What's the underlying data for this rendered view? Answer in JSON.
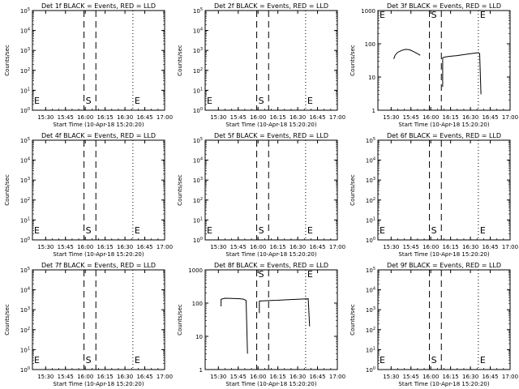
{
  "chart_data": [
    {
      "type": "line",
      "title": "Det 1f BLACK = Events, RED = LLD",
      "xlabel": "Start Time (10-Apr-18 15:20:20)",
      "ylabel": "Counts/sec",
      "x_ticks": [
        "15:30",
        "15:45",
        "16:00",
        "16:15",
        "16:30",
        "16:45",
        "17:00"
      ],
      "y_ticks": [
        "10^0",
        "10^1",
        "10^2",
        "10^3",
        "10^4",
        "10^5"
      ],
      "ylim": [
        1,
        100000
      ],
      "log_y": true,
      "markers": [
        {
          "label": "E",
          "x": "15:20",
          "style": "dotted"
        },
        {
          "label": "S",
          "x": "15:59",
          "style": "dashed"
        },
        {
          "label": "",
          "x": "16:08",
          "style": "dashed"
        },
        {
          "label": "E",
          "x": "16:36",
          "style": "dotted"
        }
      ],
      "series": []
    },
    {
      "type": "line",
      "title": "Det 2f BLACK = Events, RED = LLD",
      "xlabel": "Start Time (10-Apr-18 15:20:20)",
      "ylabel": "Counts/sec",
      "x_ticks": [
        "15:30",
        "15:45",
        "16:00",
        "16:15",
        "16:30",
        "16:45",
        "17:00"
      ],
      "y_ticks": [
        "10^0",
        "10^1",
        "10^2",
        "10^3",
        "10^4",
        "10^5"
      ],
      "ylim": [
        1,
        100000
      ],
      "log_y": true,
      "markers": [
        {
          "label": "E",
          "x": "15:20",
          "style": "dotted"
        },
        {
          "label": "S",
          "x": "15:59",
          "style": "dashed"
        },
        {
          "label": "",
          "x": "16:08",
          "style": "dashed"
        },
        {
          "label": "E",
          "x": "16:36",
          "style": "dotted"
        }
      ],
      "series": []
    },
    {
      "type": "line",
      "title": "Det 3f BLACK = Events, RED = LLD",
      "xlabel": "Start Time (10-Apr-18 15:20:20)",
      "ylabel": "Counts/sec",
      "x_ticks": [
        "15:30",
        "15:45",
        "16:00",
        "16:15",
        "16:30",
        "16:45",
        "17:00"
      ],
      "y_ticks": [
        "1",
        "10",
        "100",
        "1000"
      ],
      "ylim": [
        1,
        1000
      ],
      "log_y": true,
      "markers": [
        {
          "label": "E",
          "x": "15:20",
          "style": "dotted"
        },
        {
          "label": "S",
          "x": "15:59",
          "style": "dashed"
        },
        {
          "label": "",
          "x": "16:08",
          "style": "dashed"
        },
        {
          "label": "E",
          "x": "16:36",
          "style": "dotted"
        }
      ],
      "series": [
        {
          "color": "#000000",
          "segments": [
            [
              [
                "15:32",
                35
              ],
              [
                "15:33",
                45
              ],
              [
                "15:35",
                55
              ],
              [
                "15:38",
                63
              ],
              [
                "15:41",
                68
              ],
              [
                "15:44",
                66
              ],
              [
                "15:47",
                58
              ],
              [
                "15:50",
                50
              ],
              [
                "15:52",
                45
              ]
            ],
            [
              [
                "16:09",
                5
              ],
              [
                "16:09",
                38
              ],
              [
                "16:11",
                40
              ],
              [
                "16:15",
                42
              ],
              [
                "16:20",
                44
              ],
              [
                "16:25",
                47
              ],
              [
                "16:30",
                50
              ],
              [
                "16:33",
                52
              ],
              [
                "16:36",
                54
              ],
              [
                "16:37",
                50
              ],
              [
                "16:38",
                3
              ]
            ]
          ]
        }
      ]
    },
    {
      "type": "line",
      "title": "Det 4f BLACK = Events, RED = LLD",
      "xlabel": "Start Time (10-Apr-18 15:20:20)",
      "ylabel": "Counts/sec",
      "x_ticks": [
        "15:30",
        "15:45",
        "16:00",
        "16:15",
        "16:30",
        "16:45",
        "17:00"
      ],
      "y_ticks": [
        "10^0",
        "10^1",
        "10^2",
        "10^3",
        "10^4",
        "10^5"
      ],
      "ylim": [
        1,
        100000
      ],
      "log_y": true,
      "markers": [
        {
          "label": "E",
          "x": "15:20",
          "style": "dotted"
        },
        {
          "label": "S",
          "x": "15:59",
          "style": "dashed"
        },
        {
          "label": "",
          "x": "16:08",
          "style": "dashed"
        },
        {
          "label": "E",
          "x": "16:36",
          "style": "dotted"
        }
      ],
      "series": []
    },
    {
      "type": "line",
      "title": "Det 5f BLACK = Events, RED = LLD",
      "xlabel": "Start Time (10-Apr-18 15:20:20)",
      "ylabel": "Counts/sec",
      "x_ticks": [
        "15:30",
        "15:45",
        "16:00",
        "16:15",
        "16:30",
        "16:45",
        "17:00"
      ],
      "y_ticks": [
        "10^0",
        "10^1",
        "10^2",
        "10^3",
        "10^4",
        "10^5"
      ],
      "ylim": [
        1,
        100000
      ],
      "log_y": true,
      "markers": [
        {
          "label": "E",
          "x": "15:20",
          "style": "dotted"
        },
        {
          "label": "S",
          "x": "15:59",
          "style": "dashed"
        },
        {
          "label": "",
          "x": "16:08",
          "style": "dashed"
        },
        {
          "label": "E",
          "x": "16:36",
          "style": "dotted"
        }
      ],
      "series": []
    },
    {
      "type": "line",
      "title": "Det 6f BLACK = Events, RED = LLD",
      "xlabel": "Start Time (10-Apr-18 15:20:20)",
      "ylabel": "Counts/sec",
      "x_ticks": [
        "15:30",
        "15:45",
        "16:00",
        "16:15",
        "16:30",
        "16:45",
        "17:00"
      ],
      "y_ticks": [
        "10^0",
        "10^1",
        "10^2",
        "10^3",
        "10^4",
        "10^5"
      ],
      "ylim": [
        1,
        100000
      ],
      "log_y": true,
      "markers": [
        {
          "label": "E",
          "x": "15:20",
          "style": "dotted"
        },
        {
          "label": "S",
          "x": "15:59",
          "style": "dashed"
        },
        {
          "label": "",
          "x": "16:08",
          "style": "dashed"
        },
        {
          "label": "E",
          "x": "16:36",
          "style": "dotted"
        }
      ],
      "series": []
    },
    {
      "type": "line",
      "title": "Det 7f BLACK = Events, RED = LLD",
      "xlabel": "Start Time (10-Apr-18 15:20:20)",
      "ylabel": "Counts/sec",
      "x_ticks": [
        "15:30",
        "15:45",
        "16:00",
        "16:15",
        "16:30",
        "16:45",
        "17:00"
      ],
      "y_ticks": [
        "10^0",
        "10^1",
        "10^2",
        "10^3",
        "10^4",
        "10^5"
      ],
      "ylim": [
        1,
        100000
      ],
      "log_y": true,
      "markers": [
        {
          "label": "E",
          "x": "15:20",
          "style": "dotted"
        },
        {
          "label": "S",
          "x": "15:59",
          "style": "dashed"
        },
        {
          "label": "",
          "x": "16:08",
          "style": "dashed"
        },
        {
          "label": "E",
          "x": "16:36",
          "style": "dotted"
        }
      ],
      "series": []
    },
    {
      "type": "line",
      "title": "Det 8f BLACK = Events, RED = LLD",
      "xlabel": "Start Time (10-Apr-18 15:20:20)",
      "ylabel": "Counts/sec",
      "x_ticks": [
        "15:30",
        "15:45",
        "16:00",
        "16:15",
        "16:30",
        "16:45",
        "17:00"
      ],
      "y_ticks": [
        "1",
        "10",
        "100",
        "1000"
      ],
      "ylim": [
        1,
        1000
      ],
      "log_y": true,
      "markers": [
        {
          "label": "",
          "x": "15:20",
          "style": "dotted"
        },
        {
          "label": "S",
          "x": "15:59",
          "style": "dashed"
        },
        {
          "label": "",
          "x": "16:08",
          "style": "dashed"
        },
        {
          "label": "E",
          "x": "16:36",
          "style": "dotted"
        }
      ],
      "series": [
        {
          "color": "#000000",
          "segments": [
            [
              [
                "15:32",
                80
              ],
              [
                "15:32",
                130
              ],
              [
                "15:35",
                140
              ],
              [
                "15:40",
                138
              ],
              [
                "15:45",
                136
              ],
              [
                "15:49",
                132
              ],
              [
                "15:51",
                120
              ],
              [
                "15:52",
                3
              ]
            ],
            [
              [
                "16:01",
                50
              ],
              [
                "16:01",
                115
              ],
              [
                "16:05",
                118
              ],
              [
                "16:10",
                120
              ],
              [
                "16:15",
                122
              ],
              [
                "16:20",
                125
              ],
              [
                "16:25",
                128
              ],
              [
                "16:30",
                130
              ],
              [
                "16:35",
                133
              ],
              [
                "16:38",
                135
              ],
              [
                "16:39",
                20
              ]
            ]
          ]
        }
      ]
    },
    {
      "type": "line",
      "title": "Det 9f BLACK = Events, RED = LLD",
      "xlabel": "Start Time (10-Apr-18 15:20:20)",
      "ylabel": "Counts/sec",
      "x_ticks": [
        "15:30",
        "15:45",
        "16:00",
        "16:15",
        "16:30",
        "16:45",
        "17:00"
      ],
      "y_ticks": [
        "10^0",
        "10^1",
        "10^2",
        "10^3",
        "10^4",
        "10^5"
      ],
      "ylim": [
        1,
        100000
      ],
      "log_y": true,
      "markers": [
        {
          "label": "E",
          "x": "15:20",
          "style": "dotted"
        },
        {
          "label": "S",
          "x": "15:59",
          "style": "dashed"
        },
        {
          "label": "",
          "x": "16:08",
          "style": "dashed"
        },
        {
          "label": "E",
          "x": "16:36",
          "style": "dotted"
        }
      ],
      "series": []
    }
  ]
}
